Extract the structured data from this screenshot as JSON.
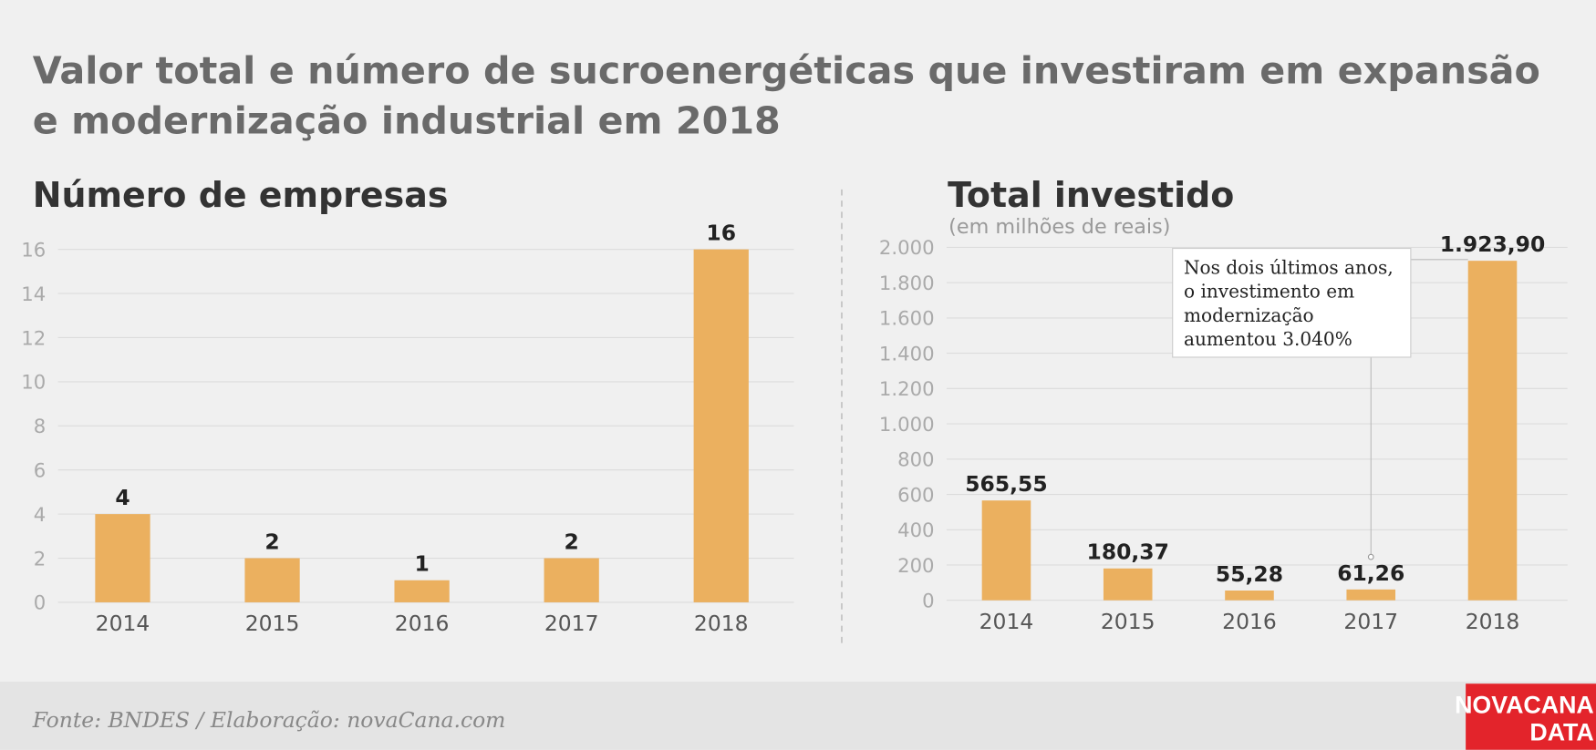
{
  "header": {
    "title_lines": [
      "Valor total e número de sucroenergéticas que investiram em expansão",
      "e modernização industrial em 2018"
    ]
  },
  "chart_data": [
    {
      "type": "bar",
      "title": "Número de empresas",
      "categories": [
        "2014",
        "2015",
        "2016",
        "2017",
        "2018"
      ],
      "values": [
        4,
        2,
        1,
        2,
        16
      ],
      "color": "#ebb05f",
      "ylim": [
        0,
        16
      ],
      "yticks": [
        0,
        2,
        4,
        6,
        8,
        10,
        12,
        14,
        16
      ],
      "grid": true
    },
    {
      "type": "bar",
      "title": "Total investido",
      "subtitle": "(em milhões de reais)",
      "categories": [
        "2014",
        "2015",
        "2016",
        "2017",
        "2018"
      ],
      "values": [
        565.55,
        180.37,
        55.28,
        61.26,
        1923.9
      ],
      "value_labels": [
        "565,55",
        "180,37",
        "55,28",
        "61,26",
        "1.923,90"
      ],
      "color": "#ebb05f",
      "ylim": [
        0,
        2000
      ],
      "yticks": [
        0,
        200,
        400,
        600,
        800,
        {
          "value": 1000,
          "label": "1.000"
        },
        {
          "value": 1200,
          "label": "1.200"
        },
        {
          "value": 1400,
          "label": "1.400"
        },
        {
          "value": 1600,
          "label": "1.600"
        },
        {
          "value": 1800,
          "label": "1.800"
        },
        {
          "value": 2000,
          "label": "2.000"
        }
      ],
      "grid": true,
      "annotation": {
        "lines": [
          "Nos dois últimos anos,",
          "o investimento em",
          "modernização",
          "aumentou 3.040%"
        ]
      }
    }
  ],
  "footer": {
    "source": "Fonte: BNDES / Elaboração: novaCana.com",
    "logo": [
      "NOVACANA",
      "DATA"
    ]
  }
}
